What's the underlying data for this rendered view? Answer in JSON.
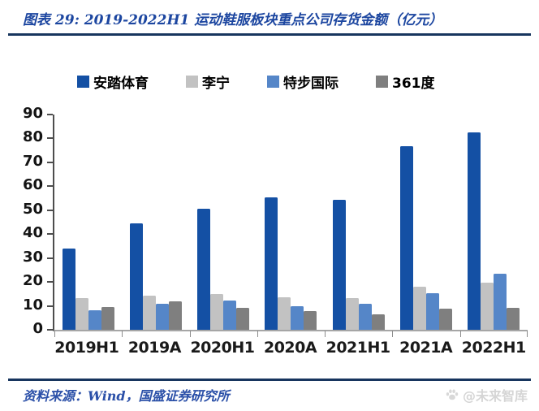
{
  "header": {
    "title": "图表 29:  2019-2022H1 运动鞋服板块重点公司存货金额（亿元）"
  },
  "footer": {
    "source": "资料来源：Wind，国盛证券研究所",
    "watermark": "@未来智库"
  },
  "colors": {
    "title_blue": "#1C46A0",
    "divider_navy": "#17355E",
    "footer_blue": "#2B50A8",
    "watermark_gray": "#D5D5D5",
    "y_axis": "#4D4D4D",
    "x_axis": "#A6A6A6"
  },
  "chart_data": {
    "type": "bar",
    "title": "2019-2022H1 运动鞋服板块重点公司存货金额（亿元）",
    "xlabel": "",
    "ylabel": "",
    "categories": [
      "2019H1",
      "2019A",
      "2020H1",
      "2020A",
      "2021H1",
      "2021A",
      "2022H1"
    ],
    "series": [
      {
        "name": "安踏体育",
        "color": "#1450A4",
        "values": [
          33.9,
          44.6,
          50.6,
          55.2,
          54.4,
          76.9,
          82.4
        ]
      },
      {
        "name": "李宁",
        "color": "#C2C2C2",
        "values": [
          13.2,
          14.3,
          15.1,
          13.6,
          13.3,
          17.9,
          19.8
        ]
      },
      {
        "name": "特步国际",
        "color": "#5586C8",
        "values": [
          8.0,
          10.8,
          12.3,
          10.0,
          11.0,
          15.2,
          23.3
        ]
      },
      {
        "name": "361度",
        "color": "#7F7F7F",
        "values": [
          9.5,
          11.8,
          9.1,
          7.7,
          6.5,
          9.0,
          9.2
        ]
      }
    ],
    "ylim": [
      0,
      90
    ],
    "ytick_step": 10,
    "grid": false,
    "legend_position": "top"
  }
}
